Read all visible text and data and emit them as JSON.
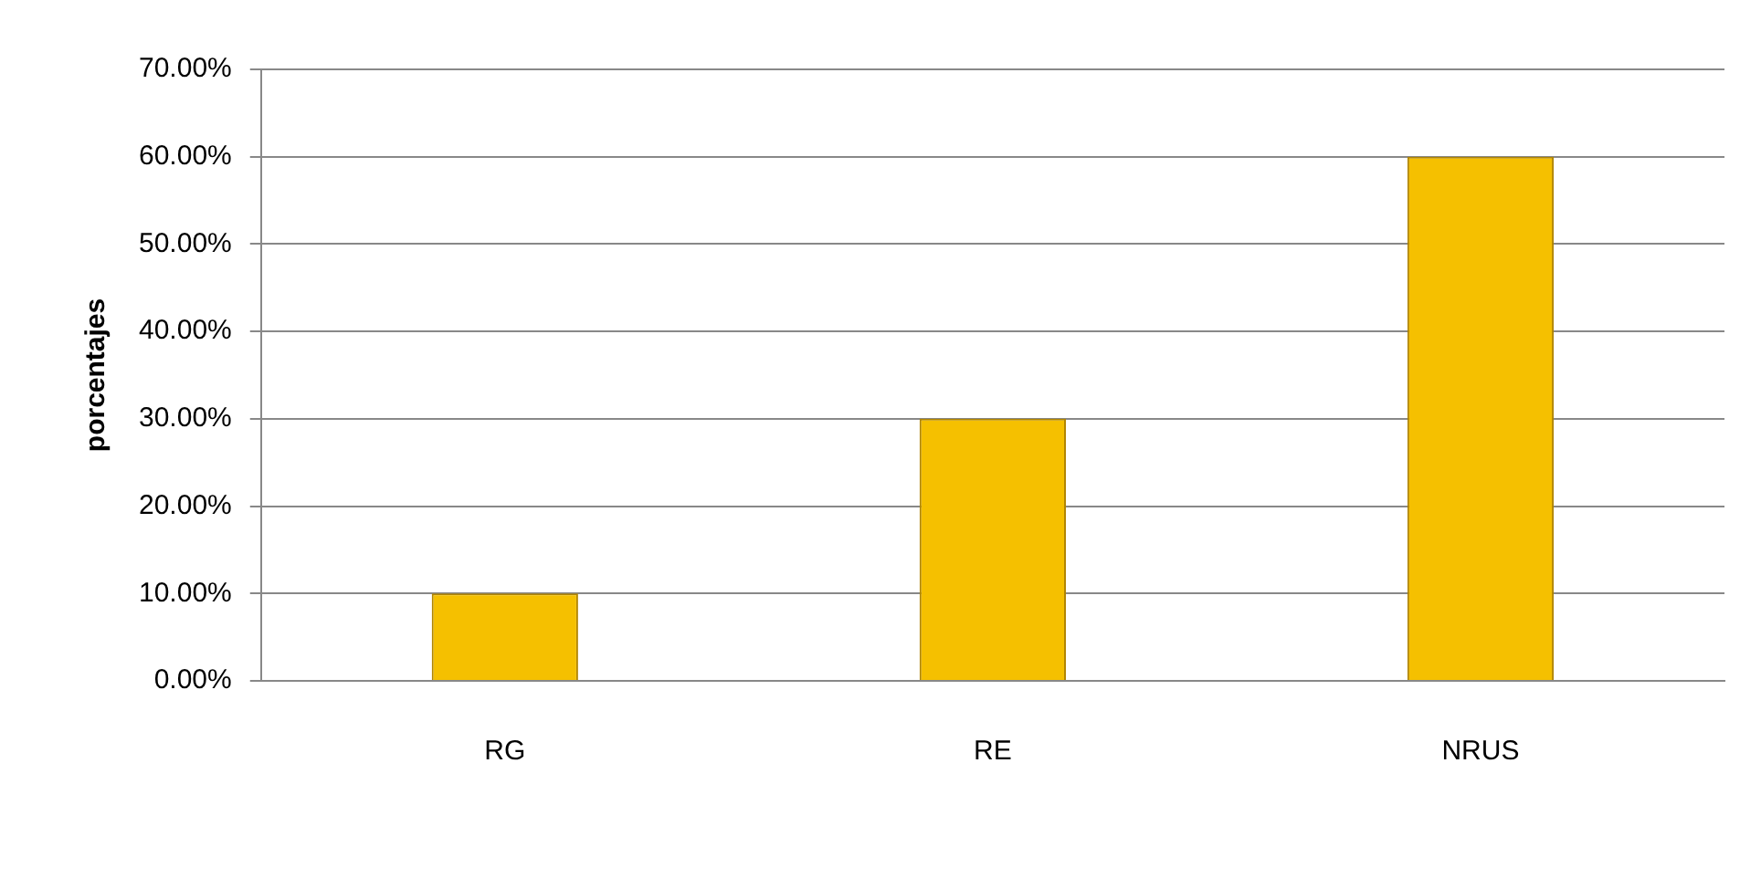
{
  "chart_data": {
    "type": "bar",
    "ylabel": "porcentajes",
    "categories": [
      "RG",
      "RE",
      "NRUS"
    ],
    "values": [
      10,
      30,
      60
    ],
    "color": "#f5c000",
    "ylim": [
      0,
      70
    ],
    "yticks": [
      {
        "value": 0,
        "label": "0.00%"
      },
      {
        "value": 10,
        "label": "10.00%"
      },
      {
        "value": 20,
        "label": "20.00%"
      },
      {
        "value": 30,
        "label": "30.00%"
      },
      {
        "value": 40,
        "label": "40.00%"
      },
      {
        "value": 50,
        "label": "50.00%"
      },
      {
        "value": 60,
        "label": "60.00%"
      },
      {
        "value": 70,
        "label": "70.00%"
      }
    ],
    "grid": "y",
    "legend": false
  }
}
